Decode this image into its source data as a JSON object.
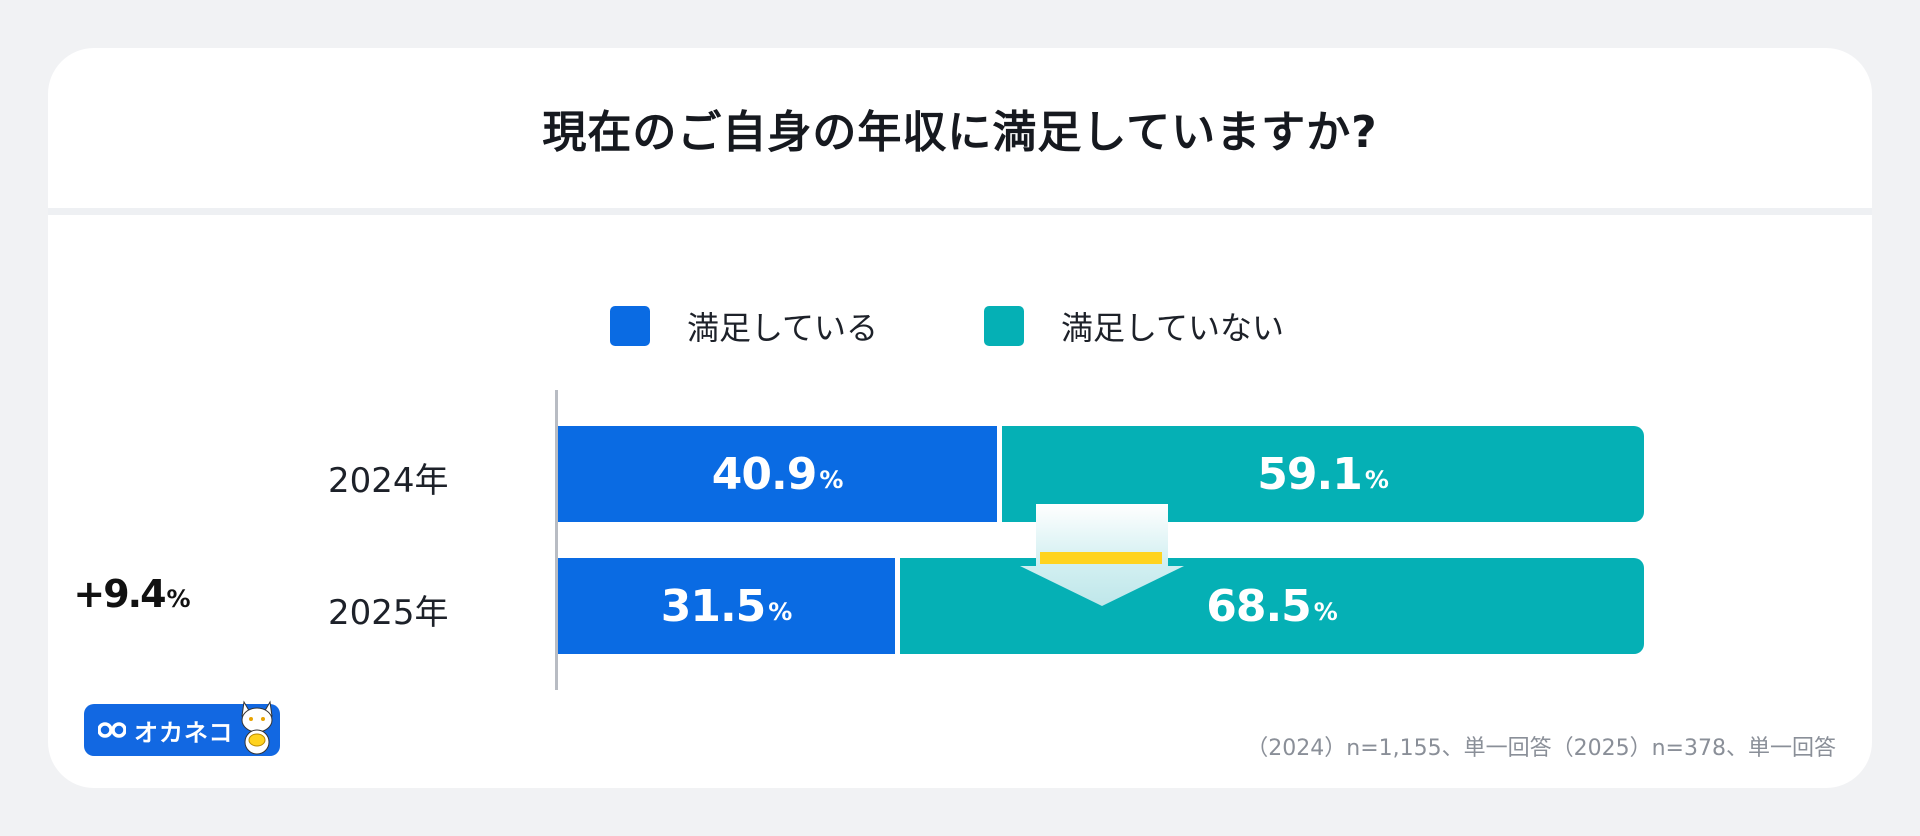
{
  "chart_data": {
    "type": "bar",
    "orientation": "horizontal",
    "stacked": true,
    "title": "現在のご自身の年収に満足していますか?",
    "categories": [
      "2024年",
      "2025年"
    ],
    "series": [
      {
        "name": "満足している",
        "color": "#0a6be3",
        "values": [
          40.9,
          31.5
        ],
        "labels": [
          "40.9",
          "31.5"
        ]
      },
      {
        "name": "満足していない",
        "color": "#05b0b5",
        "values": [
          59.1,
          68.5
        ],
        "labels": [
          "59.1",
          "68.5"
        ]
      }
    ],
    "unit": "%",
    "xlim": [
      0,
      100
    ],
    "legend_position": "top",
    "annotation": {
      "text": "+9.4",
      "unit": "%",
      "series": "満足していない"
    }
  },
  "footnote": "（2024）n=1,155、単一回答（2025）n=378、単一回答",
  "logo": {
    "text": "オカネコ"
  }
}
